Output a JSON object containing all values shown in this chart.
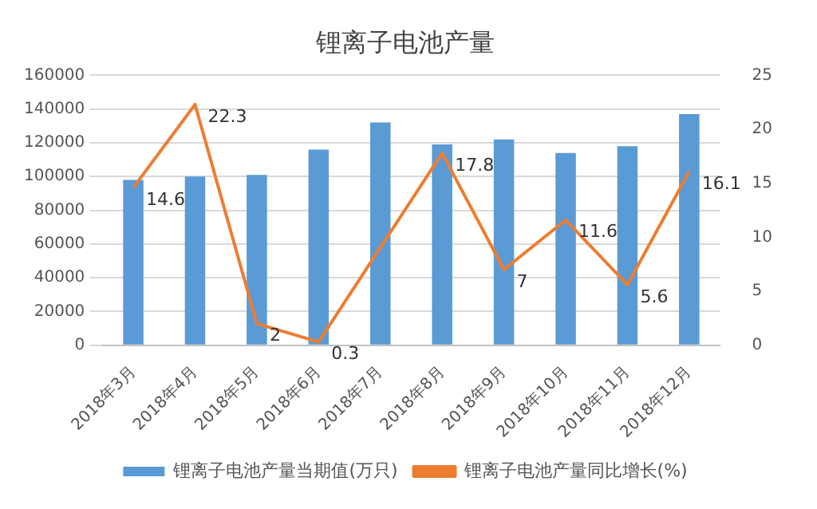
{
  "chart_data": {
    "type": "bar",
    "title": "锂离子电池产量",
    "categories": [
      "2018年3月",
      "2018年4月",
      "2018年5月",
      "2018年6月",
      "2018年7月",
      "2018年8月",
      "2018年9月",
      "2018年10月",
      "2018年11月",
      "2018年12月"
    ],
    "series": [
      {
        "name": "锂离子电池产量当期值(万只)",
        "color": "#5b9bd5",
        "values": [
          98000,
          100000,
          101000,
          116000,
          132000,
          119000,
          122000,
          114000,
          118000,
          137000
        ]
      },
      {
        "name": "锂离子电池产量同比增长(%)",
        "type": "line",
        "axis": "y2",
        "color": "#ed7d31",
        "values": [
          14.6,
          22.3,
          2,
          0.3,
          null,
          17.8,
          7,
          11.6,
          5.6,
          16.1
        ],
        "value_labels": [
          "14.6",
          "22.3",
          "2",
          "0.3",
          null,
          "17.8",
          "7",
          "11.6",
          "5.6",
          "16.1"
        ]
      }
    ],
    "ylim": [
      0,
      160000
    ],
    "yticks": [
      0,
      20000,
      40000,
      60000,
      80000,
      100000,
      120000,
      140000,
      160000
    ],
    "y2lim": [
      0,
      25
    ],
    "y2ticks": [
      0,
      5,
      10,
      15,
      20,
      25
    ],
    "grid": "y",
    "legend": "bottom",
    "marker": "none"
  }
}
